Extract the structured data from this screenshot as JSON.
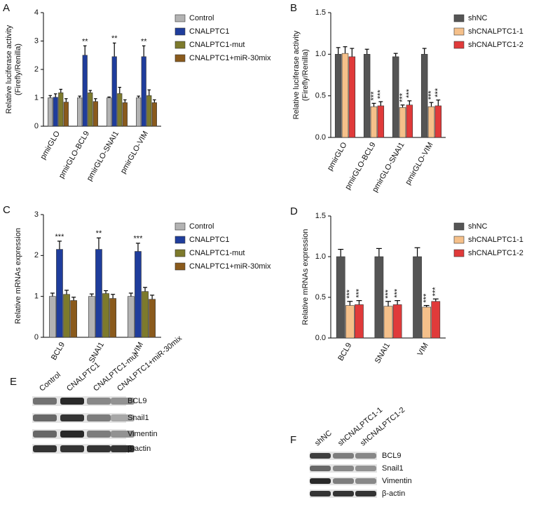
{
  "chart_data": [
    {
      "type": "bar",
      "panel": "A",
      "y_label": [
        "Relative luciferase activity",
        "(Firefly/Renilla)"
      ],
      "categories": [
        "pmirGLO",
        "pmirGLO-BCL9",
        "pmirGLO-SNAI1",
        "pmirGLO-VIM"
      ],
      "ylim": [
        0,
        4
      ],
      "yticks": [
        0,
        1,
        2,
        3,
        4
      ],
      "annotation_orientation": "horizontal",
      "series": [
        {
          "name": "Control",
          "color": "#b3b3b3",
          "values": [
            1.0,
            1.0,
            1.0,
            1.0
          ],
          "errors": [
            0.08,
            0.06,
            0.03,
            0.06
          ],
          "annotations": [
            null,
            null,
            null,
            null
          ]
        },
        {
          "name": "CNALPTC1",
          "color": "#1f3d9c",
          "values": [
            1.02,
            2.5,
            2.45,
            2.45
          ],
          "errors": [
            0.12,
            0.33,
            0.48,
            0.38
          ],
          "annotations": [
            null,
            "**",
            "**",
            "**"
          ]
        },
        {
          "name": "CNALPTC1-mut",
          "color": "#7d7a2c",
          "values": [
            1.18,
            1.18,
            1.15,
            1.08
          ],
          "errors": [
            0.12,
            0.08,
            0.22,
            0.2
          ],
          "annotations": [
            null,
            null,
            null,
            null
          ]
        },
        {
          "name": "CNALPTC1+miR-30mix",
          "color": "#8a5a1c",
          "values": [
            0.85,
            0.87,
            0.83,
            0.83
          ],
          "errors": [
            0.12,
            0.1,
            0.1,
            0.1
          ],
          "annotations": [
            null,
            null,
            null,
            null
          ]
        }
      ]
    },
    {
      "type": "bar",
      "panel": "B",
      "y_label": [
        "Relative luciferase activity",
        "(Firefly/Renilla)"
      ],
      "categories": [
        "pmirGLO",
        "pmirGLO-BCL9",
        "pmirGLO-SNAI1",
        "pmirGLO-VIM"
      ],
      "ylim": [
        0,
        1.5
      ],
      "yticks": [
        {
          "value": 0,
          "label": "0.0"
        },
        0.5,
        {
          "value": 1,
          "label": "1.0"
        },
        1.5
      ],
      "annotation_orientation": "vertical",
      "series": [
        {
          "name": "shNC",
          "color": "#555555",
          "values": [
            1.0,
            1.0,
            0.97,
            1.0
          ],
          "errors": [
            0.08,
            0.06,
            0.04,
            0.07
          ],
          "annotations": [
            null,
            null,
            null,
            null
          ]
        },
        {
          "name": "shCNALPTC1-1",
          "color": "#f5c08a",
          "values": [
            1.01,
            0.37,
            0.36,
            0.37
          ],
          "errors": [
            0.08,
            0.04,
            0.03,
            0.05
          ],
          "annotations": [
            null,
            "***",
            "***",
            "***"
          ]
        },
        {
          "name": "shCNALPTC1-2",
          "color": "#e03a3a",
          "values": [
            0.97,
            0.38,
            0.39,
            0.38
          ],
          "errors": [
            0.1,
            0.05,
            0.05,
            0.07
          ],
          "annotations": [
            null,
            "***",
            "***",
            "***"
          ]
        }
      ]
    },
    {
      "type": "bar",
      "panel": "C",
      "y_label": [
        "Relative mRNAs expression"
      ],
      "categories": [
        "BCL9",
        "SNAI1",
        "VIM"
      ],
      "ylim": [
        0,
        3
      ],
      "yticks": [
        0,
        1,
        2,
        3
      ],
      "annotation_orientation": "horizontal",
      "series": [
        {
          "name": "Control",
          "color": "#b3b3b3",
          "values": [
            1.0,
            1.0,
            1.0
          ],
          "errors": [
            0.08,
            0.06,
            0.08
          ],
          "annotations": [
            null,
            null,
            null
          ]
        },
        {
          "name": "CNALPTC1",
          "color": "#1f3d9c",
          "values": [
            2.15,
            2.15,
            2.1
          ],
          "errors": [
            0.2,
            0.28,
            0.2
          ],
          "annotations": [
            "***",
            "**",
            "***"
          ]
        },
        {
          "name": "CNALPTC1-mut",
          "color": "#7d7a2c",
          "values": [
            1.05,
            1.07,
            1.12
          ],
          "errors": [
            0.1,
            0.07,
            0.1
          ],
          "annotations": [
            null,
            null,
            null
          ]
        },
        {
          "name": "CNALPTC1+miR-30mix",
          "color": "#8a5a1c",
          "values": [
            0.9,
            0.95,
            0.93
          ],
          "errors": [
            0.08,
            0.1,
            0.1
          ],
          "annotations": [
            null,
            null,
            null
          ]
        }
      ]
    },
    {
      "type": "bar",
      "panel": "D",
      "y_label": [
        "Relative mRNAs expression"
      ],
      "categories": [
        "BCL9",
        "SNAI1",
        "VIM"
      ],
      "ylim": [
        0,
        1.5
      ],
      "yticks": [
        {
          "value": 0,
          "label": "0.0"
        },
        0.5,
        {
          "value": 1,
          "label": "1.0"
        },
        1.5
      ],
      "annotation_orientation": "vertical",
      "series": [
        {
          "name": "shNC",
          "color": "#555555",
          "values": [
            1.0,
            1.0,
            1.0
          ],
          "errors": [
            0.09,
            0.1,
            0.11
          ],
          "annotations": [
            null,
            null,
            null
          ]
        },
        {
          "name": "shCNALPTC1-1",
          "color": "#f5c08a",
          "values": [
            0.4,
            0.39,
            0.38
          ],
          "errors": [
            0.05,
            0.06,
            0.02
          ],
          "annotations": [
            "***",
            "***",
            "***"
          ]
        },
        {
          "name": "shCNALPTC1-2",
          "color": "#e03a3a",
          "values": [
            0.41,
            0.41,
            0.45
          ],
          "errors": [
            0.05,
            0.05,
            0.03
          ],
          "annotations": [
            "***",
            "***",
            "***"
          ]
        }
      ]
    }
  ],
  "blots": [
    {
      "panel": "E",
      "lanes": [
        "Control",
        "CNALPTC1",
        "CNALPTC1-mut",
        "CNALPTC1+miR-30mix"
      ],
      "rows": [
        "BCL9",
        "Snail1",
        "Vimentin",
        "β-actin"
      ]
    },
    {
      "panel": "F",
      "lanes": [
        "shNC",
        "shCNALPTC1-1",
        "shCNALPTC1-2"
      ],
      "rows": [
        "BCL9",
        "Snail1",
        "Vimentin",
        "β-actin"
      ]
    }
  ]
}
